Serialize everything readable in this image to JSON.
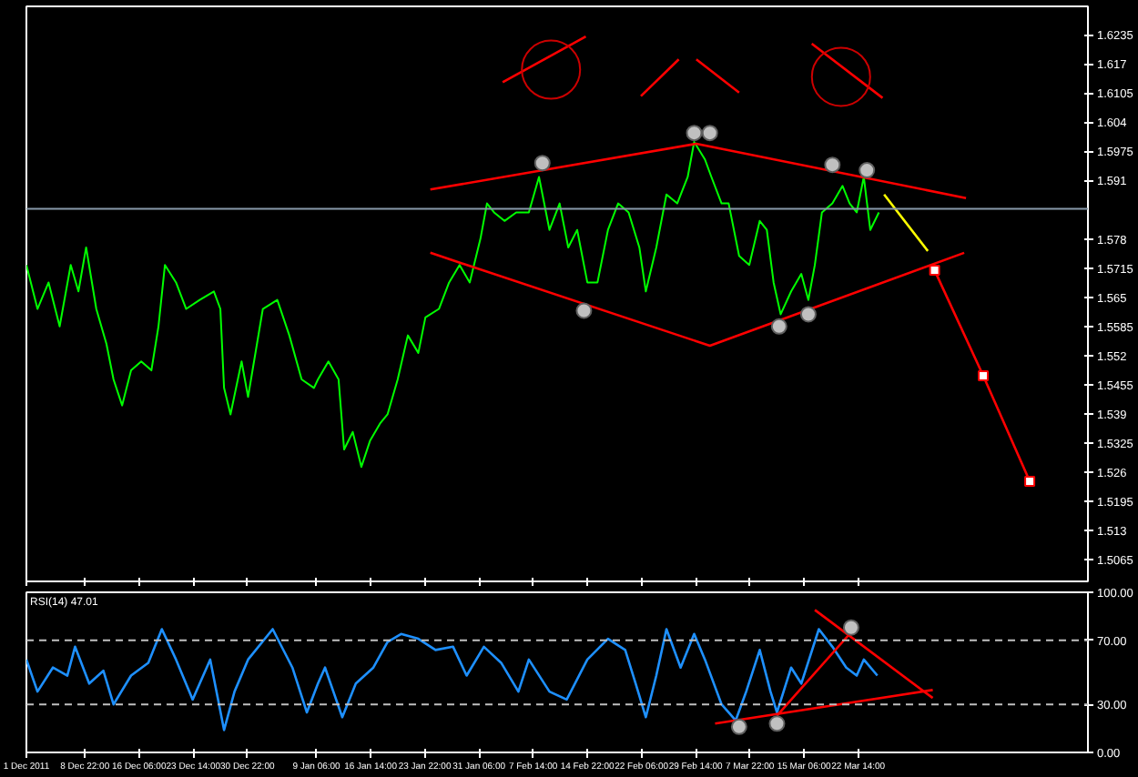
{
  "chart_data": [
    {
      "type": "line",
      "tick_labels": "y",
      "grid": false,
      "xlim": [
        "2011-12-01T00:00",
        "2012-04-22T16:00"
      ],
      "xticks": [
        {
          "value": "2011-12-01T00:00",
          "label": null
        },
        {
          "value": "2011-12-08T22:00",
          "label": null
        },
        {
          "value": "2011-12-16T06:00",
          "label": null
        },
        {
          "value": "2011-12-23T14:00",
          "label": null
        },
        {
          "value": "2011-12-30T22:00",
          "label": null
        },
        {
          "value": "2012-01-09T06:00",
          "label": null
        },
        {
          "value": "2012-01-16T14:00",
          "label": null
        },
        {
          "value": "2012-01-23T22:00",
          "label": null
        },
        {
          "value": "2012-01-31T06:00",
          "label": null
        },
        {
          "value": "2012-02-07T14:00",
          "label": null
        },
        {
          "value": "2012-02-14T22:00",
          "label": null
        },
        {
          "value": "2012-02-22T06:00",
          "label": null
        },
        {
          "value": "2012-02-29T14:00",
          "label": null
        },
        {
          "value": "2012-03-07T22:00",
          "label": null
        },
        {
          "value": "2012-03-15T06:00",
          "label": null
        },
        {
          "value": "2012-03-22T14:00",
          "label": null
        }
      ],
      "ylim": [
        1.5017,
        1.6298
      ],
      "yticks": [
        1.6235,
        1.617,
        1.6105,
        1.604,
        1.5975,
        1.591,
        1.578,
        1.5715,
        1.565,
        1.5585,
        1.552,
        1.5455,
        1.539,
        1.5325,
        1.526,
        1.5195,
        1.513,
        1.5065
      ],
      "ref_lines": [
        {
          "axis": "y",
          "value": 1.5847,
          "color": "#8899aa"
        }
      ],
      "series": [
        {
          "color": "#00ff00",
          "x": [
            "2011-12-01T00:00",
            "2011-12-02T12:00",
            "2011-12-04T00:00",
            "2011-12-05T12:00",
            "2011-12-07T00:00",
            "2011-12-08T01:00",
            "2011-12-09T02:00",
            "2011-12-10T11:00",
            "2011-12-11T20:00",
            "2011-12-12T19:00",
            "2011-12-13T23:00",
            "2011-12-15T04:00",
            "2011-12-16T13:00",
            "2011-12-17T22:00",
            "2011-12-18T21:00",
            "2011-12-19T18:00",
            "2011-12-21T06:00",
            "2011-12-22T15:00",
            "2011-12-24T11:00",
            "2011-12-26T09:00",
            "2011-12-27T06:00",
            "2011-12-27T18:00",
            "2011-12-28T15:00",
            "2011-12-30T03:00",
            "2011-12-31T00:00",
            "2012-01-02T00:00",
            "2012-01-03T23:00",
            "2012-01-05T14:00",
            "2012-01-07T06:00",
            "2012-01-08T22:00",
            "2012-01-09T11:00",
            "2012-01-10T21:00",
            "2012-01-12T06:00",
            "2012-01-13T00:00",
            "2012-01-14T04:00",
            "2012-01-15T08:00",
            "2012-01-16T12:00",
            "2012-01-17T22:00",
            "2012-01-18T21:00",
            "2012-01-20T06:00",
            "2012-01-21T15:00",
            "2012-01-23T01:00",
            "2012-01-24T00:00",
            "2012-01-25T20:00",
            "2012-01-27T05:00",
            "2012-01-28T15:00",
            "2012-01-30T00:00",
            "2012-01-31T11:00",
            "2012-02-01T08:00",
            "2012-02-02T07:00",
            "2012-02-03T17:00",
            "2012-02-05T07:00",
            "2012-02-07T00:00",
            "2012-02-08T09:00",
            "2012-02-09T19:00",
            "2012-02-11T04:00",
            "2012-02-12T08:00",
            "2012-02-13T13:00",
            "2012-02-14T22:00",
            "2012-02-16T07:00",
            "2012-02-17T17:00",
            "2012-02-19T02:00",
            "2012-02-20T12:00",
            "2012-02-21T23:00",
            "2012-02-22T20:00",
            "2012-02-24T06:00",
            "2012-02-25T15:00",
            "2012-02-27T02:00",
            "2012-02-28T12:00",
            "2012-02-29T09:00",
            "2012-03-01T20:00",
            "2012-03-02T17:00",
            "2012-03-04T02:00",
            "2012-03-05T01:00",
            "2012-03-06T11:00",
            "2012-03-07T20:00",
            "2012-03-09T06:00",
            "2012-03-10T05:00",
            "2012-03-11T03:00",
            "2012-03-12T02:00",
            "2012-03-13T12:00",
            "2012-03-14T21:00",
            "2012-03-15T20:00",
            "2012-03-16T17:00",
            "2012-03-17T16:00",
            "2012-03-19T02:00",
            "2012-03-20T11:00",
            "2012-03-21T10:00",
            "2012-03-22T09:00",
            "2012-03-23T08:00",
            "2012-03-24T05:00",
            "2012-03-25T09:00"
          ],
          "values": [
            1.5722,
            1.5624,
            1.5683,
            1.5585,
            1.5722,
            1.5663,
            1.5761,
            1.5624,
            1.5546,
            1.5467,
            1.5409,
            1.5487,
            1.5507,
            1.5487,
            1.5585,
            1.5722,
            1.5683,
            1.5624,
            1.5644,
            1.5663,
            1.5624,
            1.5448,
            1.5389,
            1.5507,
            1.5428,
            1.5624,
            1.5644,
            1.5565,
            1.5467,
            1.5448,
            1.5467,
            1.5507,
            1.5467,
            1.5311,
            1.535,
            1.5272,
            1.533,
            1.537,
            1.5389,
            1.5467,
            1.5565,
            1.5526,
            1.5605,
            1.5624,
            1.5683,
            1.5722,
            1.5683,
            1.5781,
            1.5859,
            1.5839,
            1.582,
            1.5839,
            1.5839,
            1.5918,
            1.58,
            1.5859,
            1.5761,
            1.58,
            1.5683,
            1.5683,
            1.58,
            1.5859,
            1.5839,
            1.5761,
            1.5663,
            1.5761,
            1.5879,
            1.5859,
            1.5918,
            1.5996,
            1.5957,
            1.5918,
            1.5859,
            1.5859,
            1.5742,
            1.5722,
            1.582,
            1.58,
            1.5683,
            1.5612,
            1.5663,
            1.5702,
            1.5644,
            1.5722,
            1.5839,
            1.5859,
            1.5898,
            1.5859,
            1.5839,
            1.5918,
            1.58,
            1.5839
          ]
        },
        {
          "color": "#ff0000",
          "x": [
            "2012-01-24T16:00",
            "2012-02-29T16:00",
            "2012-04-06T04:00"
          ],
          "values": [
            1.589,
            1.5992,
            1.5871
          ]
        },
        {
          "color": "#ff0000",
          "x": [
            "2012-01-24T16:00",
            "2012-03-02T12:00",
            "2012-04-05T22:00"
          ],
          "values": [
            1.5749,
            1.5542,
            1.5749
          ]
        },
        {
          "color": "#ff0000",
          "marker": "square",
          "x": [
            "2012-04-01T22:00",
            "2012-04-08T12:00",
            "2012-04-14T19:00"
          ],
          "values": [
            1.571,
            1.5475,
            1.524
          ]
        },
        {
          "color": "#ffff00",
          "x": [
            "2012-03-26T02:00",
            "2012-04-01T00:00"
          ],
          "values": [
            1.5879,
            1.5753
          ]
        },
        {
          "color": "#ff0000",
          "x": [
            "2012-02-03T11:00",
            "2012-02-14T17:00"
          ],
          "values": [
            1.6129,
            1.6231
          ]
        },
        {
          "color": "#ff0000",
          "x": [
            "2012-02-22T04:00",
            "2012-02-27T07:00"
          ],
          "values": [
            1.6098,
            1.618
          ]
        },
        {
          "color": "#ff0000",
          "x": [
            "2012-02-29T16:00",
            "2012-03-06T11:00"
          ],
          "values": [
            1.618,
            1.6106
          ]
        },
        {
          "color": "#ff0000",
          "x": [
            "2012-03-16T07:00",
            "2012-03-25T21:00"
          ],
          "values": [
            1.6215,
            1.6094
          ]
        },
        {
          "type": "bubble",
          "color": "#cc0000",
          "x": [
            "2012-02-10T00:00",
            "2012-03-20T06:00"
          ],
          "values": [
            1.6157,
            1.6141
          ],
          "sizes": [
            1,
            1
          ]
        },
        {
          "type": "scatter",
          "color": "#c0c0c0",
          "marker": "circle",
          "x": [
            "2012-02-08T20:00",
            "2012-02-29T09:00",
            "2012-03-02T12:00",
            "2012-03-19T02:00",
            "2012-03-23T18:00",
            "2012-02-14T11:00",
            "2012-03-11T21:00",
            "2012-03-15T20:00"
          ],
          "values": [
            1.5949,
            1.6016,
            1.6016,
            1.5945,
            1.5933,
            1.562,
            1.5585,
            1.5612
          ]
        }
      ]
    },
    {
      "type": "line",
      "grid": false,
      "annotations": [
        "RSI(14) 47.01"
      ],
      "xlim": [
        "2011-12-01T00:00",
        "2012-04-22T16:00"
      ],
      "xticks": [
        {
          "value": "2011-12-01T00:00",
          "label": "1 Dec 2011"
        },
        {
          "value": "2011-12-08T22:00",
          "label": "8 Dec 22:00"
        },
        {
          "value": "2011-12-16T06:00",
          "label": "16 Dec 06:00"
        },
        {
          "value": "2011-12-23T14:00",
          "label": "23 Dec 14:00"
        },
        {
          "value": "2011-12-30T22:00",
          "label": "30 Dec 22:00"
        },
        {
          "value": "2012-01-09T06:00",
          "label": "9 Jan 06:00"
        },
        {
          "value": "2012-01-16T14:00",
          "label": "16 Jan 14:00"
        },
        {
          "value": "2012-01-23T22:00",
          "label": "23 Jan 22:00"
        },
        {
          "value": "2012-01-31T06:00",
          "label": "31 Jan 06:00"
        },
        {
          "value": "2012-02-07T14:00",
          "label": "7 Feb 14:00"
        },
        {
          "value": "2012-02-14T22:00",
          "label": "14 Feb 22:00"
        },
        {
          "value": "2012-02-22T06:00",
          "label": "22 Feb 06:00"
        },
        {
          "value": "2012-02-29T14:00",
          "label": "29 Feb 14:00"
        },
        {
          "value": "2012-03-07T22:00",
          "label": "7 Mar 22:00"
        },
        {
          "value": "2012-03-15T06:00",
          "label": "15 Mar 06:00"
        },
        {
          "value": "2012-03-22T14:00",
          "label": "22 Mar 14:00"
        }
      ],
      "ylim": [
        0,
        100
      ],
      "yticks": [
        {
          "value": 100,
          "label": "100.00"
        },
        {
          "value": 70,
          "label": "70.00"
        },
        {
          "value": 30,
          "label": "30.00"
        },
        {
          "value": 0,
          "label": "0.00"
        }
      ],
      "ref_lines": [
        {
          "axis": "y",
          "value": 70,
          "color": "#c0c0c0",
          "line_style": "dashed"
        },
        {
          "axis": "y",
          "value": 30,
          "color": "#c0c0c0",
          "line_style": "dashed"
        }
      ],
      "series": [
        {
          "color": "#1e90ff",
          "x": [
            "2011-12-01T00:00",
            "2011-12-02T12:00",
            "2011-12-04T14:00",
            "2011-12-06T13:00",
            "2011-12-07T14:00",
            "2011-12-09T12:00",
            "2011-12-11T10:00",
            "2011-12-12T19:00",
            "2011-12-15T04:00",
            "2011-12-17T12:00",
            "2011-12-19T08:00",
            "2011-12-21T06:00",
            "2011-12-23T12:00",
            "2011-12-25T21:00",
            "2011-12-27T18:00",
            "2011-12-29T04:00",
            "2011-12-31T00:00",
            "2012-01-03T08:00",
            "2012-01-06T00:00",
            "2012-01-07T23:00",
            "2012-01-09T11:00",
            "2012-01-10T10:00",
            "2012-01-12T18:00",
            "2012-01-14T14:00",
            "2012-01-16T23:00",
            "2012-01-18T21:00",
            "2012-01-20T17:00",
            "2012-01-23T01:00",
            "2012-01-25T09:00",
            "2012-01-27T18:00",
            "2012-01-29T14:00",
            "2012-01-31T22:00",
            "2012-02-03T06:00",
            "2012-02-05T14:00",
            "2012-02-07T00:00",
            "2012-02-09T19:00",
            "2012-02-12T03:00",
            "2012-02-14T22:00",
            "2012-02-17T17:00",
            "2012-02-20T01:00",
            "2012-02-21T11:00",
            "2012-02-22T20:00",
            "2012-02-24T06:00",
            "2012-02-25T15:00",
            "2012-02-27T13:00",
            "2012-02-29T09:00",
            "2012-03-01T20:00",
            "2012-03-04T02:00",
            "2012-03-06T00:00",
            "2012-03-07T10:00",
            "2012-03-09T06:00",
            "2012-03-10T17:00",
            "2012-03-11T14:00",
            "2012-03-13T12:00",
            "2012-03-14T21:00",
            "2012-03-17T06:00",
            "2012-03-19T02:00",
            "2012-03-20T23:00",
            "2012-03-22T09:00",
            "2012-03-23T08:00",
            "2012-03-25T04:00"
          ],
          "values": [
            58,
            38,
            53,
            48,
            66,
            43,
            51,
            30,
            48,
            56,
            77,
            58,
            33,
            58,
            14,
            38,
            58,
            77,
            53,
            25,
            43,
            53,
            22,
            43,
            53,
            69,
            74,
            71,
            64,
            66,
            48,
            66,
            56,
            38,
            58,
            38,
            33,
            58,
            71,
            64,
            43,
            22,
            48,
            77,
            53,
            74,
            58,
            30,
            20,
            38,
            64,
            38,
            25,
            53,
            43,
            77,
            66,
            53,
            48,
            58,
            48
          ]
        },
        {
          "color": "#ff0000",
          "x": [
            "2012-03-03T05:00",
            "2012-04-01T16:00"
          ],
          "values": [
            18,
            39
          ]
        },
        {
          "color": "#ff0000",
          "x": [
            "2012-03-11T14:00",
            "2012-03-21T10:00"
          ],
          "values": [
            23,
            74
          ]
        },
        {
          "color": "#ff0000",
          "x": [
            "2012-03-16T17:00",
            "2012-04-01T16:00"
          ],
          "values": [
            89,
            34
          ]
        },
        {
          "type": "scatter",
          "color": "#c0c0c0",
          "marker": "circle",
          "x": [
            "2012-03-06T11:00",
            "2012-03-11T14:00",
            "2012-03-21T15:00"
          ],
          "values": [
            16,
            18,
            78
          ]
        }
      ]
    }
  ]
}
